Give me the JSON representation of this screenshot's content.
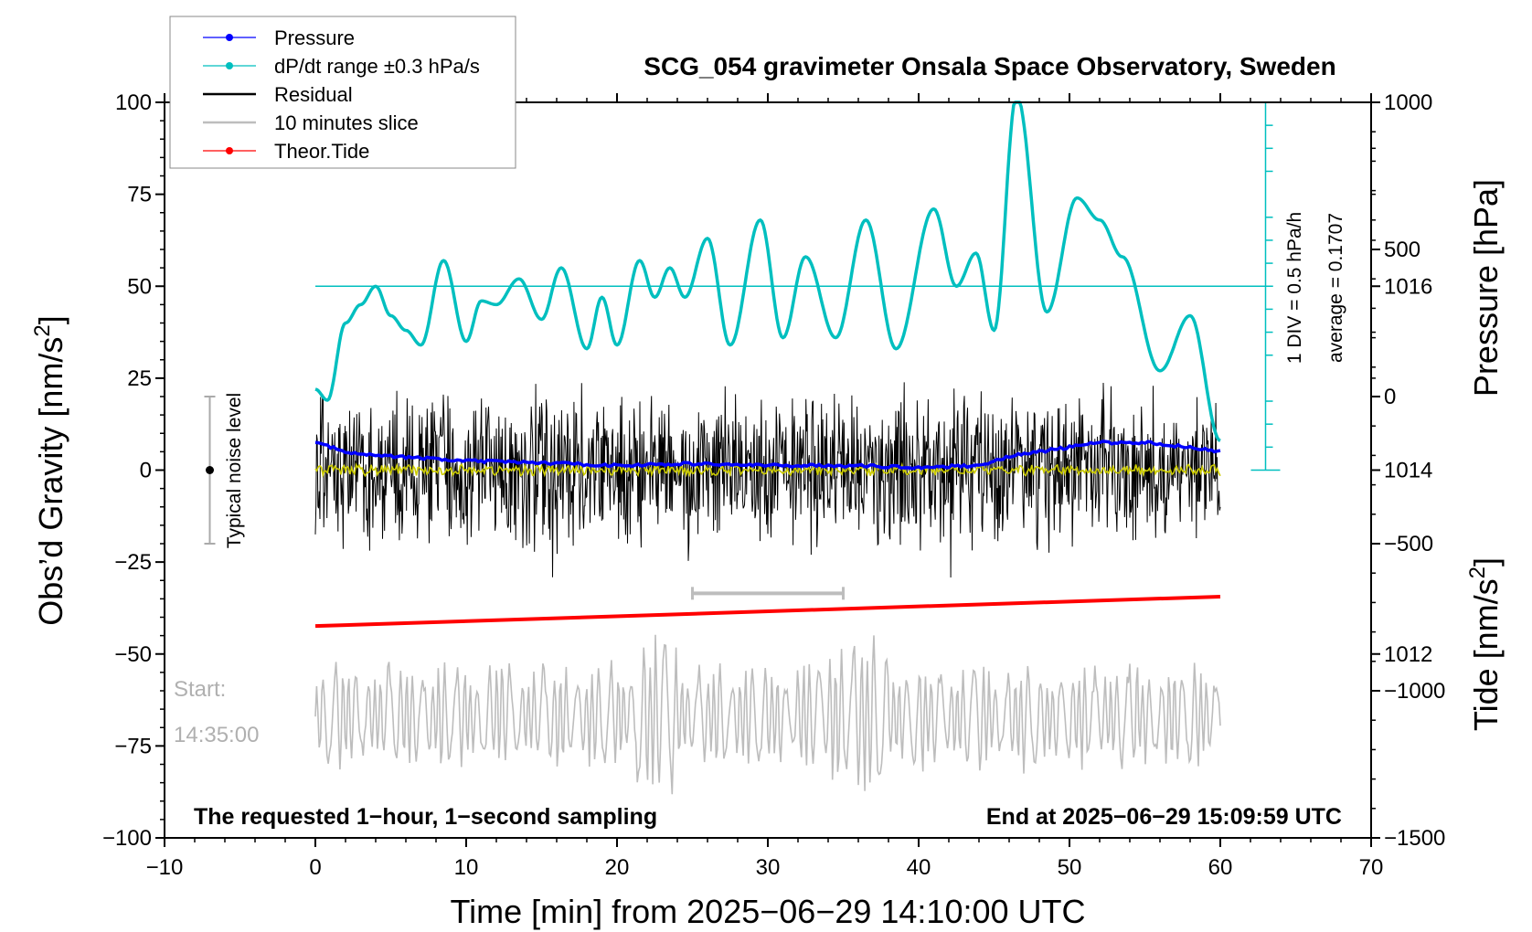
{
  "chart_data": {
    "type": "line",
    "title": "SCG_054 gravimeter Onsala Space Observatory, Sweden",
    "xlabel": "Time [min] from 2025−06−29 14:10:00 UTC",
    "ylabel_left_prefix": "Obs’d Gravity [nm/s",
    "ylabel_left_sup": "2",
    "ylabel_left_suffix": "]",
    "ylabel_right_pressure": "Pressure [hPa]",
    "ylabel_right_tide_prefix": "Tide [nm/s",
    "ylabel_right_tide_sup": "2",
    "ylabel_right_tide_suffix": "]",
    "xlim": [
      -10,
      70
    ],
    "ylim": [
      -100,
      100
    ],
    "pressure_lim": [
      1010,
      1018
    ],
    "tide_lim": [
      -1500,
      1000
    ],
    "x_ticks": [
      "−10",
      "0",
      "10",
      "20",
      "30",
      "40",
      "50",
      "60",
      "70"
    ],
    "x_tick_values": [
      -10,
      0,
      10,
      20,
      30,
      40,
      50,
      60,
      70
    ],
    "y_ticks": [
      "100",
      "75",
      "50",
      "25",
      "0",
      "−25",
      "−50",
      "−75",
      "−100"
    ],
    "y_tick_values": [
      100,
      75,
      50,
      25,
      0,
      -25,
      -50,
      -75,
      -100
    ],
    "pressure_ticks": [
      "1016",
      "1014",
      "1012"
    ],
    "pressure_tick_values": [
      1016,
      1014,
      1012
    ],
    "tide_ticks": [
      "1000",
      "500",
      "0",
      "−500",
      "−1000",
      "−1500"
    ],
    "tide_tick_values": [
      1000,
      500,
      0,
      -500,
      -1000,
      -1500
    ],
    "legend": [
      {
        "label": "Pressure",
        "color": "#0000ff",
        "marker": true
      },
      {
        "label": "dP/dt range ±0.3 hPa/s",
        "color": "#00bfbf",
        "marker": true
      },
      {
        "label": "Residual",
        "color": "#000000",
        "marker": false
      },
      {
        "label": "10 minutes slice",
        "color": "#bdbdbd",
        "marker": false
      },
      {
        "label": "Theor.Tide",
        "color": "#ff0000",
        "marker": true
      }
    ],
    "series": [
      {
        "name": "Pressure",
        "color": "#0000ff",
        "axis": "pressure",
        "x": [
          0,
          2,
          5,
          10,
          15,
          20,
          25,
          30,
          35,
          40,
          44,
          46,
          48,
          50,
          52,
          55,
          58,
          60
        ],
        "values": [
          1014.3,
          1014.2,
          1014.15,
          1014.1,
          1014.08,
          1014.05,
          1014.07,
          1014.05,
          1014.05,
          1014.03,
          1014.05,
          1014.15,
          1014.2,
          1014.25,
          1014.3,
          1014.3,
          1014.25,
          1014.2
        ]
      },
      {
        "name": "dP/dt range ±0.3 hPa/s",
        "color": "#00bfbf",
        "axis": "gravity",
        "x": [
          0,
          0.8,
          2,
          3,
          4,
          5,
          6,
          7,
          8.5,
          10,
          11,
          12,
          13.5,
          15,
          16.3,
          18,
          19,
          20,
          21.5,
          22.5,
          23.5,
          24.5,
          26,
          27.5,
          29.5,
          31,
          32.5,
          34.5,
          36.5,
          38.5,
          41,
          42.5,
          43.8,
          45,
          46.5,
          48.5,
          50.5,
          52,
          53.5,
          56,
          58,
          60
        ],
        "values": [
          22,
          19,
          40,
          45,
          50,
          42,
          38,
          34,
          57,
          35,
          46,
          45,
          52,
          41,
          55,
          33,
          47,
          34,
          57,
          47,
          55,
          47,
          63,
          34,
          68,
          36,
          58,
          36,
          68,
          33,
          71,
          50,
          59,
          38,
          102,
          43,
          74,
          68,
          58,
          27,
          42,
          8
        ]
      },
      {
        "name": "Residual",
        "color": "#000000",
        "axis": "gravity",
        "amplitude": 20,
        "extremes": [
          -36,
          31
        ]
      },
      {
        "name": "10 minutes slice",
        "color": "#bdbdbd",
        "axis": "gravity",
        "start": "Start:",
        "start_time": "14:35:00",
        "slice_x": [
          25,
          35
        ],
        "center": -67,
        "extremes": [
          -90,
          -36
        ]
      },
      {
        "name": "Theor.Tide",
        "color": "#ff0000",
        "axis": "tide",
        "x": [
          0,
          60
        ],
        "values": [
          -780,
          -680
        ]
      }
    ],
    "annotations": {
      "typical_noise": "Typical noise level",
      "typical_noise_x": -7,
      "typical_noise_range": [
        -20,
        20
      ],
      "div_note": "1 DIV = 0.5 hPa/h",
      "average_note": "average = 0.1707",
      "dpdt_ref_level": 50,
      "bottom_left": "The requested 1−hour, 1−second sampling",
      "bottom_right": "End at 2025−06−29 15:09:59 UTC"
    }
  }
}
